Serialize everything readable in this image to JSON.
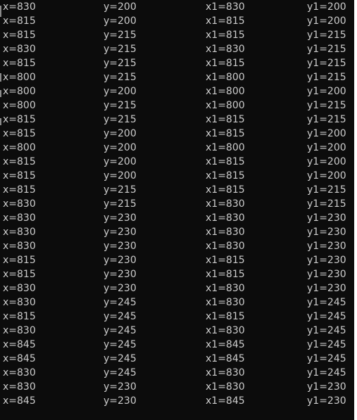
{
  "console": {
    "background": "#0c0c0c",
    "text_color": "#cccccc",
    "rows": [
      {
        "x": "x=830",
        "y": "y=200",
        "x1": "x1=830",
        "y1": "y1=200"
      },
      {
        "x": "x=815",
        "y": "y=200",
        "x1": "x1=815",
        "y1": "y1=200"
      },
      {
        "x": "x=815",
        "y": "y=215",
        "x1": "x1=815",
        "y1": "y1=215"
      },
      {
        "x": "x=830",
        "y": "y=215",
        "x1": "x1=830",
        "y1": "y1=215"
      },
      {
        "x": "x=815",
        "y": "y=215",
        "x1": "x1=815",
        "y1": "y1=215"
      },
      {
        "x": "x=800",
        "y": "y=215",
        "x1": "x1=800",
        "y1": "y1=215"
      },
      {
        "x": "x=800",
        "y": "y=200",
        "x1": "x1=800",
        "y1": "y1=200"
      },
      {
        "x": "x=800",
        "y": "y=215",
        "x1": "x1=800",
        "y1": "y1=215"
      },
      {
        "x": "x=815",
        "y": "y=215",
        "x1": "x1=815",
        "y1": "y1=215"
      },
      {
        "x": "x=815",
        "y": "y=200",
        "x1": "x1=815",
        "y1": "y1=200"
      },
      {
        "x": "x=800",
        "y": "y=200",
        "x1": "x1=800",
        "y1": "y1=200"
      },
      {
        "x": "x=815",
        "y": "y=200",
        "x1": "x1=815",
        "y1": "y1=200"
      },
      {
        "x": "x=815",
        "y": "y=200",
        "x1": "x1=815",
        "y1": "y1=200"
      },
      {
        "x": "x=815",
        "y": "y=215",
        "x1": "x1=815",
        "y1": "y1=215"
      },
      {
        "x": "x=830",
        "y": "y=215",
        "x1": "x1=830",
        "y1": "y1=215"
      },
      {
        "x": "x=830",
        "y": "y=230",
        "x1": "x1=830",
        "y1": "y1=230"
      },
      {
        "x": "x=830",
        "y": "y=230",
        "x1": "x1=830",
        "y1": "y1=230"
      },
      {
        "x": "x=830",
        "y": "y=230",
        "x1": "x1=830",
        "y1": "y1=230"
      },
      {
        "x": "x=815",
        "y": "y=230",
        "x1": "x1=815",
        "y1": "y1=230"
      },
      {
        "x": "x=815",
        "y": "y=230",
        "x1": "x1=815",
        "y1": "y1=230"
      },
      {
        "x": "x=830",
        "y": "y=230",
        "x1": "x1=830",
        "y1": "y1=230"
      },
      {
        "x": "x=830",
        "y": "y=245",
        "x1": "x1=830",
        "y1": "y1=245"
      },
      {
        "x": "x=815",
        "y": "y=245",
        "x1": "x1=815",
        "y1": "y1=245"
      },
      {
        "x": "x=830",
        "y": "y=245",
        "x1": "x1=830",
        "y1": "y1=245"
      },
      {
        "x": "x=845",
        "y": "y=245",
        "x1": "x1=845",
        "y1": "y1=245"
      },
      {
        "x": "x=845",
        "y": "y=245",
        "x1": "x1=845",
        "y1": "y1=245"
      },
      {
        "x": "x=830",
        "y": "y=245",
        "x1": "x1=830",
        "y1": "y1=245"
      },
      {
        "x": "x=830",
        "y": "y=230",
        "x1": "x1=830",
        "y1": "y1=230"
      },
      {
        "x": "x=845",
        "y": "y=230",
        "x1": "x1=845",
        "y1": "y1=230"
      }
    ]
  }
}
